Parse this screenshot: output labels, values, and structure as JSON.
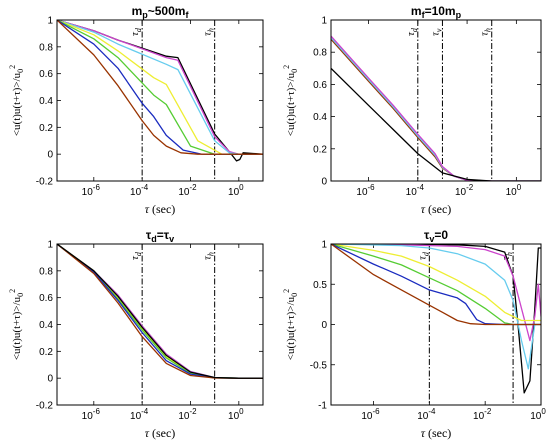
{
  "figure": {
    "panels": [
      {
        "title_main": "m",
        "title_sub1": "p",
        "title_mid": "~500m",
        "title_sub2": "f"
      },
      {
        "title_main": "m",
        "title_sub1": "f",
        "title_mid": "=10m",
        "title_sub2": "p"
      },
      {
        "title_main": "τ",
        "title_sub1": "d",
        "title_mid": "=τ",
        "title_sub2": "v"
      },
      {
        "title_main": "τ",
        "title_sub1": "v",
        "title_mid": "=0",
        "title_sub2": ""
      }
    ]
  },
  "chart_data": [
    {
      "type": "line",
      "title": "mp~500mf",
      "xlabel": "τ (sec)",
      "ylabel": "<u(t)u(t+τ)>/u0²",
      "xscale": "log",
      "xlim": [
        3e-08,
        10
      ],
      "ylim": [
        -0.2,
        1
      ],
      "xticks": [
        "10^-6",
        "10^-4",
        "10^-2",
        "10^0"
      ],
      "yticks": [
        -0.2,
        0,
        0.2,
        0.4,
        0.6,
        0.8,
        1
      ],
      "vlines": [
        {
          "label": "τd",
          "x": 0.0001
        },
        {
          "label": "τh",
          "x": 0.1
        }
      ],
      "series": [
        {
          "color": "#000000",
          "x": [
            3e-08,
            1e-06,
            1e-05,
            0.001,
            0.003,
            0.1,
            0.4,
            0.8,
            1.1,
            1.5,
            10
          ],
          "y": [
            1,
            0.92,
            0.85,
            0.73,
            0.72,
            0.15,
            0.02,
            -0.05,
            -0.04,
            0.01,
            0
          ]
        },
        {
          "color": "#cc44cc",
          "x": [
            3e-08,
            1e-06,
            1e-05,
            0.001,
            0.003,
            0.1,
            0.4,
            1,
            10
          ],
          "y": [
            1,
            0.92,
            0.85,
            0.72,
            0.7,
            0.13,
            0.02,
            0,
            0
          ]
        },
        {
          "color": "#66ccee",
          "x": [
            3e-08,
            1e-06,
            1e-05,
            0.001,
            0.003,
            0.1,
            0.4,
            1,
            10
          ],
          "y": [
            1,
            0.91,
            0.82,
            0.67,
            0.63,
            0.1,
            0.01,
            0,
            0
          ]
        },
        {
          "color": "#eeee33",
          "x": [
            3e-08,
            1e-06,
            1e-05,
            0.0003,
            0.001,
            0.02,
            0.2,
            1,
            10
          ],
          "y": [
            1,
            0.89,
            0.77,
            0.57,
            0.52,
            0.1,
            0,
            0,
            0
          ]
        },
        {
          "color": "#55cc33",
          "x": [
            3e-08,
            1e-06,
            1e-05,
            0.0003,
            0.001,
            0.01,
            0.1,
            1,
            10
          ],
          "y": [
            1,
            0.86,
            0.72,
            0.44,
            0.37,
            0.06,
            0,
            0,
            0
          ]
        },
        {
          "color": "#1a2bbf",
          "x": [
            3e-08,
            1e-06,
            1e-05,
            0.0001,
            0.0003,
            0.001,
            0.005,
            0.03,
            1,
            10
          ],
          "y": [
            1,
            0.82,
            0.64,
            0.38,
            0.28,
            0.14,
            0.03,
            0,
            0,
            0
          ]
        },
        {
          "color": "#993300",
          "x": [
            3e-08,
            1e-06,
            1e-05,
            0.0001,
            0.0003,
            0.001,
            0.004,
            0.02,
            1,
            10
          ],
          "y": [
            1,
            0.74,
            0.51,
            0.25,
            0.14,
            0.06,
            0.01,
            0,
            0,
            0
          ]
        }
      ]
    },
    {
      "type": "line",
      "title": "mf=10mp",
      "xlabel": "τ (sec)",
      "ylabel": "<u(t)u(t+τ)>/u0²",
      "xscale": "log",
      "xlim": [
        3e-08,
        10
      ],
      "ylim": [
        0,
        1
      ],
      "xticks": [
        "10^-6",
        "10^-4",
        "10^-2",
        "10^0"
      ],
      "yticks": [
        0,
        0.2,
        0.4,
        0.6,
        0.8,
        1
      ],
      "vlines": [
        {
          "label": "τd",
          "x": 0.0001
        },
        {
          "label": "τv",
          "x": 0.001
        },
        {
          "label": "τh",
          "x": 0.1
        }
      ],
      "series": [
        {
          "color": "#993300",
          "x": [
            3e-08,
            1e-06,
            1e-05,
            0.0001,
            0.0005,
            0.001,
            0.003,
            0.01,
            0.1,
            10
          ],
          "y": [
            0.88,
            0.62,
            0.45,
            0.27,
            0.15,
            0.08,
            0.03,
            0.005,
            0,
            0
          ]
        },
        {
          "color": "#66ccee",
          "x": [
            3e-08,
            1e-06,
            1e-05,
            0.0001,
            0.0005,
            0.001,
            0.003,
            0.01,
            0.1,
            10
          ],
          "y": [
            0.89,
            0.63,
            0.46,
            0.28,
            0.16,
            0.085,
            0.03,
            0.005,
            0,
            0
          ]
        },
        {
          "color": "#cc44cc",
          "x": [
            3e-08,
            1e-06,
            1e-05,
            0.0001,
            0.0005,
            0.001,
            0.003,
            0.01,
            0.1,
            10
          ],
          "y": [
            0.9,
            0.64,
            0.47,
            0.29,
            0.17,
            0.09,
            0.03,
            0.005,
            0,
            0
          ]
        },
        {
          "color": "#000000",
          "x": [
            3e-08,
            1e-06,
            1e-05,
            0.0001,
            0.001,
            0.01,
            0.1,
            10
          ],
          "y": [
            0.7,
            0.47,
            0.32,
            0.17,
            0.05,
            0.01,
            0,
            0
          ]
        }
      ]
    },
    {
      "type": "line",
      "title": "τd=τv",
      "xlabel": "τ (sec)",
      "ylabel": "<u(t)u(t+τ)>/u0²",
      "xscale": "log",
      "xlim": [
        3e-08,
        10
      ],
      "ylim": [
        -0.2,
        1
      ],
      "xticks": [
        "10^-6",
        "10^-4",
        "10^-2",
        "10^0"
      ],
      "yticks": [
        -0.2,
        0,
        0.2,
        0.4,
        0.6,
        0.8,
        1
      ],
      "vlines": [
        {
          "label": "τd",
          "x": 0.0001
        },
        {
          "label": "τh",
          "x": 0.1
        }
      ],
      "series": [
        {
          "color": "#cc44cc",
          "x": [
            3e-08,
            1e-06,
            1e-05,
            0.0001,
            0.001,
            0.01,
            0.1,
            1,
            10
          ],
          "y": [
            1,
            0.8,
            0.62,
            0.39,
            0.18,
            0.05,
            0.005,
            0,
            0
          ]
        },
        {
          "color": "#66ccee",
          "x": [
            3e-08,
            1e-06,
            1e-05,
            0.0001,
            0.001,
            0.01,
            0.1,
            1,
            10
          ],
          "y": [
            1,
            0.8,
            0.61,
            0.38,
            0.17,
            0.045,
            0.005,
            0,
            0
          ]
        },
        {
          "color": "#eeee33",
          "x": [
            3e-08,
            1e-06,
            1e-05,
            0.0001,
            0.001,
            0.01,
            0.1,
            1,
            10
          ],
          "y": [
            1,
            0.8,
            0.6,
            0.37,
            0.16,
            0.04,
            0.004,
            0,
            0
          ]
        },
        {
          "color": "#55cc33",
          "x": [
            3e-08,
            1e-06,
            1e-05,
            0.0001,
            0.001,
            0.01,
            0.1,
            1,
            10
          ],
          "y": [
            1,
            0.79,
            0.59,
            0.36,
            0.15,
            0.035,
            0.003,
            0,
            0
          ]
        },
        {
          "color": "#1a2bbf",
          "x": [
            3e-08,
            1e-06,
            1e-05,
            0.0001,
            0.001,
            0.01,
            0.1,
            1,
            10
          ],
          "y": [
            1,
            0.79,
            0.58,
            0.34,
            0.13,
            0.03,
            0.002,
            0,
            0
          ]
        },
        {
          "color": "#993300",
          "x": [
            3e-08,
            1e-06,
            1e-05,
            0.0001,
            0.001,
            0.01,
            0.1,
            1,
            10
          ],
          "y": [
            1,
            0.78,
            0.56,
            0.31,
            0.11,
            0.02,
            0.001,
            0,
            0
          ]
        },
        {
          "color": "#000000",
          "x": [
            3e-08,
            1e-06,
            1e-05,
            0.0001,
            0.001,
            0.01,
            0.1,
            1,
            10
          ],
          "y": [
            1,
            0.8,
            0.61,
            0.38,
            0.17,
            0.045,
            0.005,
            0,
            0
          ]
        }
      ]
    },
    {
      "type": "line",
      "title": "τv=0",
      "xlabel": "τ (sec)",
      "ylabel": "<u(t)u(t+τ)>/u0²",
      "xscale": "log",
      "xlim": [
        3e-08,
        1
      ],
      "ylim": [
        -1,
        1
      ],
      "xticks": [
        "10^-6",
        "10^-4",
        "10^-2",
        "10^0"
      ],
      "yticks": [
        -1,
        -0.5,
        0,
        0.5,
        1
      ],
      "vlines": [
        {
          "label": "τd",
          "x": 0.0001
        },
        {
          "label": "τh",
          "x": 0.1
        }
      ],
      "series": [
        {
          "color": "#000000",
          "x": [
            3e-08,
            1e-05,
            0.001,
            0.01,
            0.05,
            0.1,
            0.15,
            0.25,
            0.4,
            0.6,
            0.8,
            1
          ],
          "y": [
            1,
            1,
            0.99,
            0.97,
            0.9,
            0.6,
            0.0,
            -0.85,
            -0.7,
            0.2,
            0.95,
            0.95
          ]
        },
        {
          "color": "#cc44cc",
          "x": [
            3e-08,
            1e-05,
            0.001,
            0.01,
            0.05,
            0.1,
            0.2,
            0.4,
            0.6,
            0.8,
            1
          ],
          "y": [
            1,
            0.99,
            0.97,
            0.93,
            0.85,
            0.6,
            0.2,
            -0.2,
            0.1,
            0.5,
            0.1
          ]
        },
        {
          "color": "#66ccee",
          "x": [
            3e-08,
            1e-05,
            0.0001,
            0.001,
            0.01,
            0.05,
            0.1,
            0.2,
            0.35,
            0.6,
            1
          ],
          "y": [
            1,
            0.98,
            0.95,
            0.88,
            0.75,
            0.55,
            0.3,
            -0.2,
            -0.55,
            0.0,
            0.0
          ]
        },
        {
          "color": "#eeee33",
          "x": [
            3e-08,
            1e-06,
            1e-05,
            0.0001,
            0.001,
            0.01,
            0.05,
            0.2,
            1
          ],
          "y": [
            1,
            0.92,
            0.85,
            0.72,
            0.55,
            0.35,
            0.15,
            0.05,
            0.05
          ]
        },
        {
          "color": "#55cc33",
          "x": [
            3e-08,
            1e-06,
            1e-05,
            0.0001,
            0.001,
            0.01,
            0.05,
            0.1,
            0.3,
            1
          ],
          "y": [
            1,
            0.85,
            0.74,
            0.58,
            0.42,
            0.2,
            0.02,
            0,
            0,
            0
          ]
        },
        {
          "color": "#1a2bbf",
          "x": [
            3e-08,
            1e-06,
            1e-05,
            0.0001,
            0.001,
            0.002,
            0.005,
            0.01,
            0.05,
            1
          ],
          "y": [
            1,
            0.75,
            0.6,
            0.43,
            0.33,
            0.26,
            0.06,
            0.01,
            0,
            0
          ]
        },
        {
          "color": "#993300",
          "x": [
            3e-08,
            1e-06,
            1e-05,
            0.0001,
            0.0003,
            0.001,
            0.003,
            0.01,
            1
          ],
          "y": [
            1,
            0.62,
            0.43,
            0.24,
            0.15,
            0.05,
            0.01,
            0,
            0
          ]
        }
      ]
    }
  ]
}
